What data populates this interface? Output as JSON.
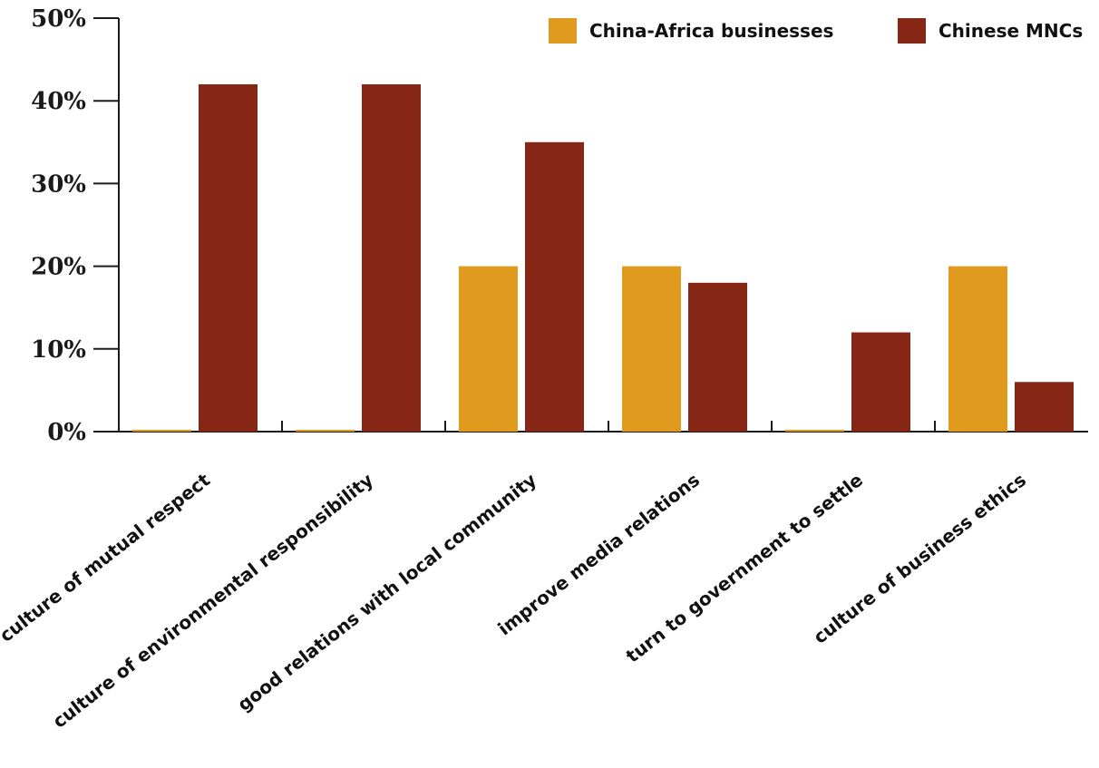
{
  "chart_data": {
    "type": "bar",
    "categories": [
      "culture of mutual respect",
      "culture of environmental responsibility",
      "good relations with local community",
      "improve media relations",
      "turn to government to settle",
      "culture of business ethics"
    ],
    "series": [
      {
        "name": "China-Africa businesses",
        "values": [
          0,
          0,
          20,
          20,
          0,
          20
        ],
        "color": "#E09A1E"
      },
      {
        "name": "Chinese MNCs",
        "values": [
          42,
          42,
          35,
          18,
          12,
          6
        ],
        "color": "#862615"
      }
    ],
    "y_ticks": [
      "0%",
      "10%",
      "20%",
      "30%",
      "40%",
      "50%"
    ],
    "ylim": [
      0,
      50
    ],
    "legend_position": "top-right",
    "grid": false
  }
}
